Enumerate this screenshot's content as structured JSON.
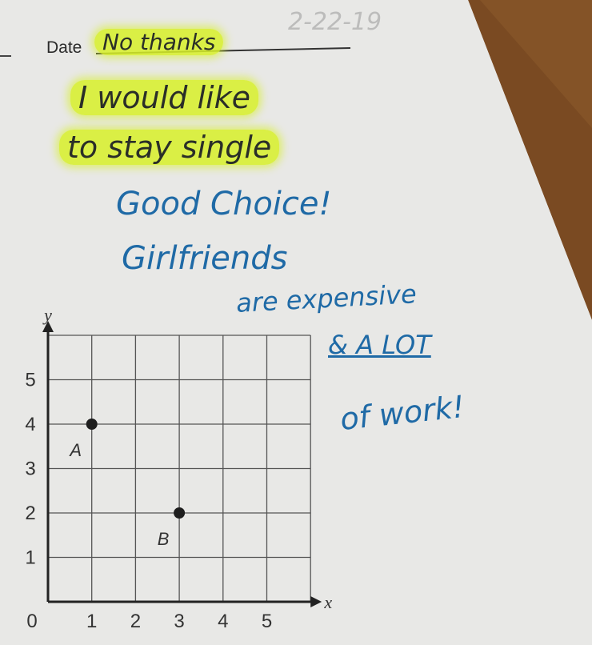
{
  "worksheet": {
    "date_label": "Date",
    "date_answer": "No thanks",
    "pencil_date": "2-22-19",
    "answer_lines": [
      "I would like",
      "to stay single"
    ],
    "teacher_lines": [
      "Good Choice!",
      "Girlfriends",
      "are expensive",
      "& A LOT",
      "of work!"
    ]
  },
  "colors": {
    "highlighter": "#d7f028",
    "teacher_ink": "#1f6aa6",
    "student_ink": "#2a2e28",
    "paper": "#e6e6e4",
    "wood": "#7a4a22"
  },
  "chart_data": {
    "type": "scatter",
    "xlabel": "x",
    "ylabel": "y",
    "x_ticks": [
      "0",
      "1",
      "2",
      "3",
      "4",
      "5"
    ],
    "y_ticks": [
      "1",
      "2",
      "3",
      "4",
      "5"
    ],
    "xlim": [
      0,
      6
    ],
    "ylim": [
      0,
      6
    ],
    "grid": true,
    "points": [
      {
        "label": "A",
        "x": 1,
        "y": 4
      },
      {
        "label": "B",
        "x": 3,
        "y": 2
      }
    ]
  }
}
